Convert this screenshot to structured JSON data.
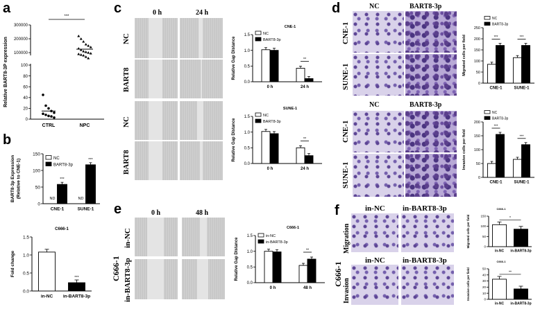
{
  "panels": {
    "a": {
      "letter": "a"
    },
    "b": {
      "letter": "b"
    },
    "c": {
      "letter": "c",
      "col_0h": "0 h",
      "col_24h": "24 h",
      "rows": [
        "NC",
        "BART8",
        "NC",
        "BART8"
      ]
    },
    "d": {
      "letter": "d",
      "col_nc": "NC",
      "col_bart": "BART8-3p",
      "col_nc2": "NC",
      "col_bart2": "BART8-3p",
      "rows": [
        "CNE-1",
        "SUNE-1",
        "CNE-1",
        "SUNE-1"
      ]
    },
    "e": {
      "letter": "e",
      "col_0h": "0 h",
      "col_48h": "48 h",
      "cell": "C666-1",
      "rows": [
        "in-NC",
        "in-BART8-3p"
      ]
    },
    "f": {
      "letter": "f",
      "col_innc": "in-NC",
      "col_inbart": "in-BART8-3p",
      "col_innc2": "in-NC",
      "col_inbart2": "in-BART8-3p",
      "cell": "C666-1",
      "rows": [
        "Migration",
        "Invasion"
      ]
    }
  },
  "chart_data": [
    {
      "id": "a",
      "type": "scatter",
      "ylabel": "Relative BART8-3P expression",
      "categories": [
        "CTRL",
        "NPC"
      ],
      "ticks_upper": [
        "300000",
        "200000",
        "100000"
      ],
      "ticks_lower": [
        "100",
        "80",
        "60",
        "40",
        "20",
        "0"
      ],
      "significance": "***",
      "series": [
        {
          "name": "CTRL",
          "values": [
            45,
            25,
            20,
            15,
            12,
            10,
            8,
            6,
            5,
            3
          ]
        },
        {
          "name": "NPC",
          "values": [
            220000,
            200000,
            180000,
            160000,
            150000,
            140000,
            130000,
            120000,
            110000,
            105000,
            100000,
            95000,
            90000,
            85000,
            80000,
            70000,
            60000
          ]
        }
      ]
    },
    {
      "id": "b1",
      "type": "bar",
      "ylabel": "BART8-3p Expression (Relative to CNE-1)",
      "ylabel_1": "BART8-3p Expression",
      "ylabel_2": "(Relative to CNE-1)",
      "categories": [
        "CNE-1",
        "SUNE-1"
      ],
      "ylim": [
        0,
        150
      ],
      "ticks": [
        "150",
        "100",
        "50",
        "0"
      ],
      "legend": [
        "NC",
        "BART8-3p"
      ],
      "series": [
        {
          "name": "NC",
          "values": [
            0,
            0
          ]
        },
        {
          "name": "BART8-3p",
          "values": [
            58,
            117
          ]
        }
      ],
      "annotations": [
        "ND",
        "ND",
        "***",
        "***"
      ]
    },
    {
      "id": "b2",
      "type": "bar",
      "title": "C666-1",
      "ylabel": "Fold change",
      "categories": [
        "in-NC",
        "in-BART8-3p"
      ],
      "ylim": [
        0,
        1.5
      ],
      "ticks": [
        "1.5",
        "1.0",
        "0.5",
        "0.0"
      ],
      "values": [
        1.08,
        0.23
      ],
      "significance": "***"
    },
    {
      "id": "c1",
      "type": "bar",
      "title": "CNE-1",
      "ylabel": "Relative Gap Distance",
      "categories": [
        "0 h",
        "24 h"
      ],
      "ylim": [
        0,
        1.5
      ],
      "ticks": [
        "1.5",
        "1.0",
        "0.5",
        "0.0"
      ],
      "legend": [
        "NC",
        "BART8-3p"
      ],
      "series": [
        {
          "name": "NC",
          "values": [
            1.02,
            0.43
          ]
        },
        {
          "name": "BART8-3p",
          "values": [
            1.0,
            0.1
          ]
        }
      ],
      "significance": "**"
    },
    {
      "id": "c2",
      "type": "bar",
      "title": "SUNE-1",
      "ylabel": "Relative Gap Distance",
      "categories": [
        "0 h",
        "24 h"
      ],
      "ylim": [
        0,
        1.5
      ],
      "ticks": [
        "1.5",
        "1.0",
        "0.5",
        "0.0"
      ],
      "legend": [
        "NC",
        "BART8-3p"
      ],
      "series": [
        {
          "name": "NC",
          "values": [
            1.02,
            0.5
          ]
        },
        {
          "name": "BART8-3p",
          "values": [
            0.95,
            0.25
          ]
        }
      ],
      "significance": "**"
    },
    {
      "id": "d1",
      "type": "bar",
      "ylabel": "Migrated cells per field",
      "categories": [
        "CNE-1",
        "SUNE-1"
      ],
      "ylim": [
        0,
        250
      ],
      "ticks": [
        "250",
        "200",
        "150",
        "100",
        "50",
        "0"
      ],
      "legend": [
        "NC",
        "BART8-3p"
      ],
      "series": [
        {
          "name": "NC",
          "values": [
            85,
            115
          ]
        },
        {
          "name": "BART8-3p",
          "values": [
            170,
            170
          ]
        }
      ],
      "significance": "***"
    },
    {
      "id": "d2",
      "type": "bar",
      "ylabel": "Invasive cells per field",
      "categories": [
        "CNE-1",
        "SUNE-1"
      ],
      "ylim": [
        0,
        200
      ],
      "ticks": [
        "200",
        "150",
        "100",
        "50",
        "0"
      ],
      "legend": [
        "NC",
        "BART8-3p"
      ],
      "series": [
        {
          "name": "NC",
          "values": [
            50,
            65
          ]
        },
        {
          "name": "BART8-3p",
          "values": [
            155,
            118
          ]
        }
      ],
      "significance": "***"
    },
    {
      "id": "e1",
      "type": "bar",
      "title": "C666-1",
      "ylabel": "Relative Gap Distance",
      "categories": [
        "0 h",
        "48 h"
      ],
      "ylim": [
        0,
        1.5
      ],
      "ticks": [
        "1.5",
        "1.0",
        "0.5",
        "0.0"
      ],
      "legend": [
        "in-NC",
        "in-BART8-3p"
      ],
      "series": [
        {
          "name": "in-NC",
          "values": [
            1.0,
            0.55
          ]
        },
        {
          "name": "in-BART8-3p",
          "values": [
            0.98,
            0.75
          ]
        }
      ],
      "significance": "**"
    },
    {
      "id": "f1",
      "type": "bar",
      "title": "C666-1",
      "ylabel": "Migrated cells per field",
      "categories": [
        "in-NC",
        "in-BART8-3p"
      ],
      "ylim": [
        0,
        150
      ],
      "ticks": [
        "150",
        "100",
        "50",
        "0"
      ],
      "values": [
        108,
        86
      ],
      "significance": "*"
    },
    {
      "id": "f2",
      "type": "bar",
      "title": "C666-1",
      "ylabel": "Invasive cells per field",
      "categories": [
        "in-NC",
        "in-BART8-3p"
      ],
      "ylim": [
        0,
        50
      ],
      "ticks": [
        "50",
        "40",
        "30",
        "20",
        "10",
        "0"
      ],
      "values": [
        33,
        17
      ],
      "significance": "**"
    }
  ]
}
